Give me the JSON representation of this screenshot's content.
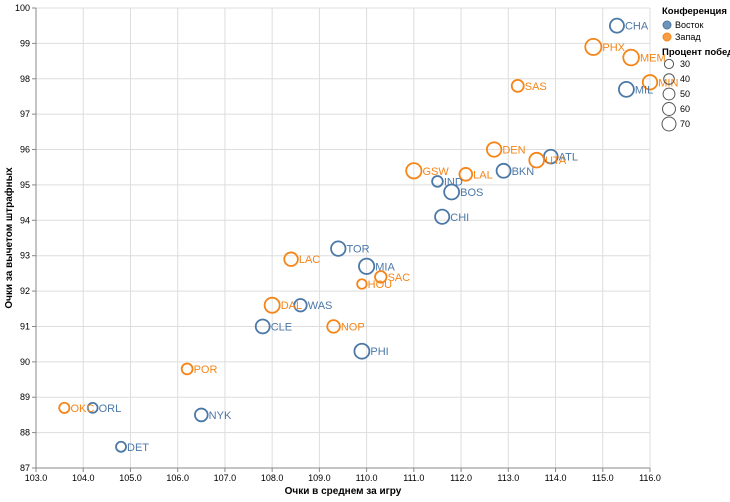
{
  "chart_data": {
    "type": "scatter",
    "xlabel": "Очки в среднем за игру",
    "ylabel": "Очки за вычетом штрафных",
    "xlim": [
      103.0,
      116.0
    ],
    "ylim": [
      87,
      100
    ],
    "x_ticks": [
      103.0,
      104.0,
      105.0,
      106.0,
      107.0,
      108.0,
      109.0,
      110.0,
      111.0,
      112.0,
      113.0,
      114.0,
      115.0,
      116.0
    ],
    "y_ticks": [
      87,
      88,
      89,
      90,
      91,
      92,
      93,
      94,
      95,
      96,
      97,
      98,
      99,
      100
    ],
    "grid": true,
    "legend": {
      "color_title": "Конференция",
      "color_items": [
        {
          "label": "Восток",
          "color": "#4c78a8"
        },
        {
          "label": "Запад",
          "color": "#f58518"
        }
      ],
      "size_title": "Процент побед",
      "size_items": [
        30,
        40,
        50,
        60,
        70
      ]
    },
    "points": [
      {
        "team": "CHA",
        "conf": "Восток",
        "x": 115.3,
        "y": 99.5,
        "win": 55
      },
      {
        "team": "PHX",
        "conf": "Запад",
        "x": 114.8,
        "y": 98.9,
        "win": 72
      },
      {
        "team": "MEM",
        "conf": "Запад",
        "x": 115.6,
        "y": 98.6,
        "win": 68
      },
      {
        "team": "MIN",
        "conf": "Запад",
        "x": 116.0,
        "y": 97.9,
        "win": 58
      },
      {
        "team": "SAS",
        "conf": "Запад",
        "x": 113.2,
        "y": 97.8,
        "win": 40
      },
      {
        "team": "MIL",
        "conf": "Восток",
        "x": 115.5,
        "y": 97.7,
        "win": 62
      },
      {
        "team": "DEN",
        "conf": "Запад",
        "x": 112.7,
        "y": 96.0,
        "win": 58
      },
      {
        "team": "ATL",
        "conf": "Восток",
        "x": 113.9,
        "y": 95.8,
        "win": 52
      },
      {
        "team": "UTA",
        "conf": "Запад",
        "x": 113.6,
        "y": 95.7,
        "win": 60
      },
      {
        "team": "GSW",
        "conf": "Запад",
        "x": 111.0,
        "y": 95.4,
        "win": 65
      },
      {
        "team": "LAL",
        "conf": "Запад",
        "x": 112.1,
        "y": 95.3,
        "win": 45
      },
      {
        "team": "BKN",
        "conf": "Восток",
        "x": 112.9,
        "y": 95.4,
        "win": 54
      },
      {
        "team": "IND",
        "conf": "Восток",
        "x": 111.5,
        "y": 95.1,
        "win": 32
      },
      {
        "team": "BOS",
        "conf": "Восток",
        "x": 111.8,
        "y": 94.8,
        "win": 62
      },
      {
        "team": "CHI",
        "conf": "Восток",
        "x": 111.6,
        "y": 94.1,
        "win": 56
      },
      {
        "team": "TOR",
        "conf": "Восток",
        "x": 109.4,
        "y": 93.2,
        "win": 58
      },
      {
        "team": "LAC",
        "conf": "Запад",
        "x": 108.4,
        "y": 92.9,
        "win": 51
      },
      {
        "team": "MIA",
        "conf": "Восток",
        "x": 110.0,
        "y": 92.7,
        "win": 65
      },
      {
        "team": "SAC",
        "conf": "Запад",
        "x": 110.3,
        "y": 92.4,
        "win": 37
      },
      {
        "team": "HOU",
        "conf": "Запад",
        "x": 109.9,
        "y": 92.2,
        "win": 25
      },
      {
        "team": "DAL",
        "conf": "Запад",
        "x": 108.0,
        "y": 91.6,
        "win": 63
      },
      {
        "team": "WAS",
        "conf": "Восток",
        "x": 108.6,
        "y": 91.6,
        "win": 43
      },
      {
        "team": "CLE",
        "conf": "Восток",
        "x": 107.8,
        "y": 91.0,
        "win": 54
      },
      {
        "team": "NOP",
        "conf": "Запад",
        "x": 109.3,
        "y": 91.0,
        "win": 44
      },
      {
        "team": "PHI",
        "conf": "Восток",
        "x": 109.9,
        "y": 90.3,
        "win": 62
      },
      {
        "team": "POR",
        "conf": "Запад",
        "x": 106.2,
        "y": 89.8,
        "win": 33
      },
      {
        "team": "OKC",
        "conf": "Запад",
        "x": 103.6,
        "y": 88.7,
        "win": 29
      },
      {
        "team": "ORL",
        "conf": "Восток",
        "x": 104.2,
        "y": 88.7,
        "win": 27
      },
      {
        "team": "NYK",
        "conf": "Восток",
        "x": 106.5,
        "y": 88.5,
        "win": 45
      },
      {
        "team": "DET",
        "conf": "Восток",
        "x": 104.8,
        "y": 87.6,
        "win": 28
      }
    ]
  }
}
